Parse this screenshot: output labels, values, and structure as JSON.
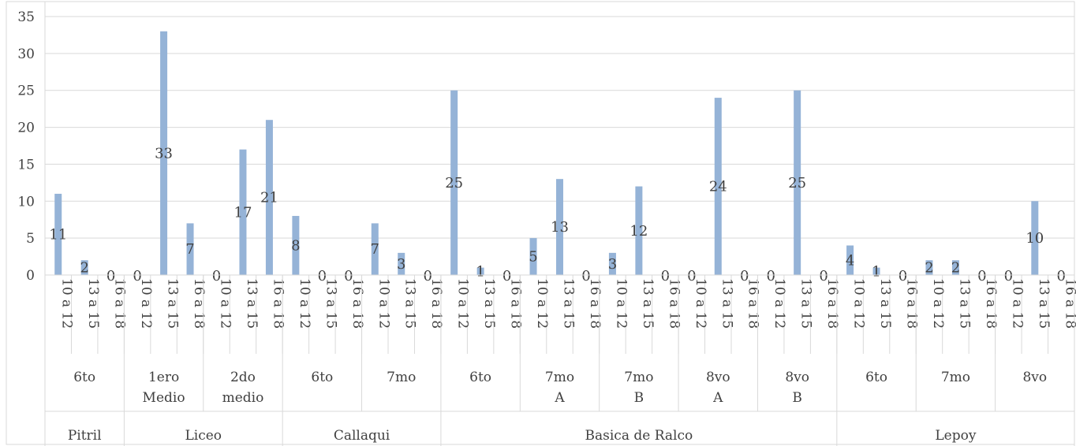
{
  "chart_data": {
    "type": "bar",
    "title": "",
    "xlabel": "",
    "ylabel": "",
    "ylim": [
      0,
      35
    ],
    "yticks": [
      0,
      5,
      10,
      15,
      20,
      25,
      30,
      35
    ],
    "grid": true,
    "legend": "none",
    "bar_color": "#95b3d7",
    "axis_color": "#d9d9d9",
    "text_color": "#404040",
    "age_labels": [
      "10 a 12",
      "13 a 15",
      "16 a 18"
    ],
    "values": [
      11,
      2,
      0,
      0,
      33,
      7,
      0,
      17,
      21,
      8,
      0,
      0,
      7,
      3,
      0,
      25,
      1,
      0,
      5,
      13,
      0,
      3,
      12,
      0,
      0,
      24,
      0,
      0,
      25,
      0,
      4,
      1,
      0,
      2,
      2,
      0,
      0,
      10,
      0
    ],
    "courses": [
      "6to",
      "1ero Medio",
      "2do medio",
      "6to",
      "7mo",
      "6to",
      "7mo A",
      "7mo B",
      "8vo A",
      "8vo B",
      "6to",
      "7mo",
      "8vo"
    ],
    "schools": [
      {
        "name": "Pitril",
        "courses": 1
      },
      {
        "name": "Liceo",
        "courses": 2
      },
      {
        "name": "Callaqui",
        "courses": 2
      },
      {
        "name": "Basica de Ralco",
        "courses": 5
      },
      {
        "name": "Lepoy",
        "courses": 3
      }
    ]
  }
}
